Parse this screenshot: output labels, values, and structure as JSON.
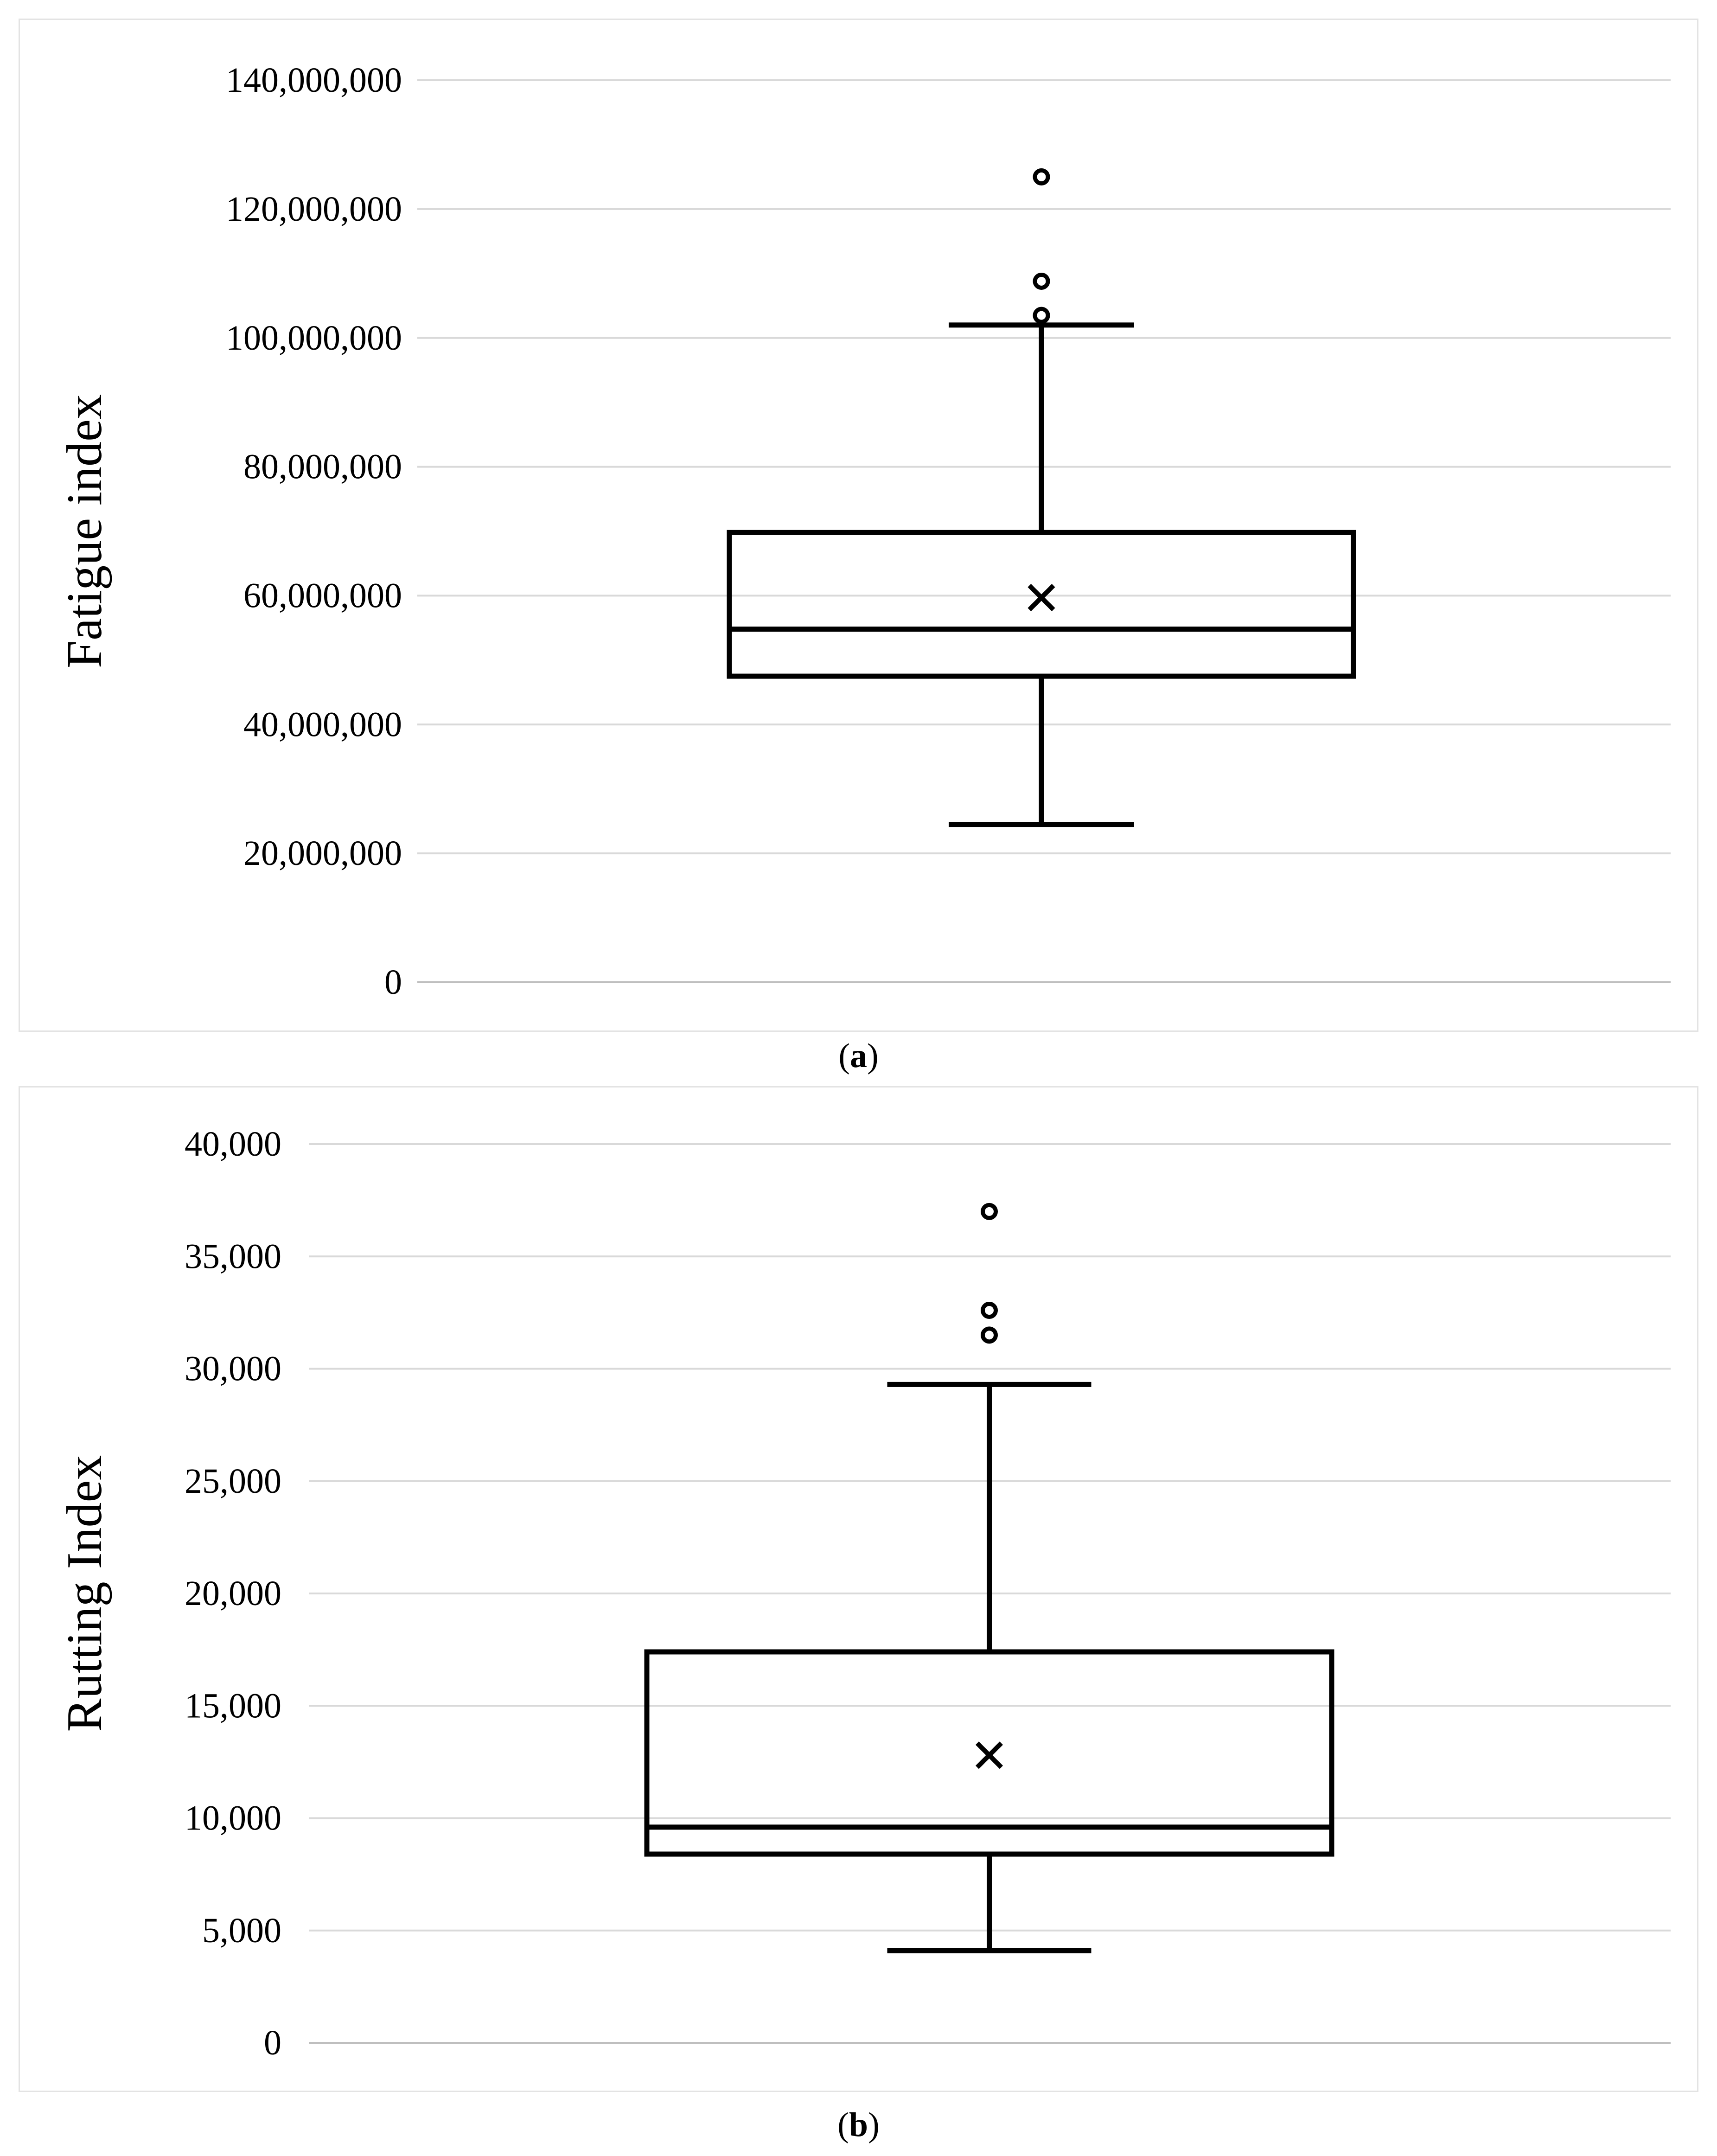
{
  "chart_data": [
    {
      "type": "box",
      "id": "a",
      "caption_letter": "a",
      "ylabel": "Fatigue index",
      "ylim": [
        0,
        140000000
      ],
      "yticks": [
        0,
        20000000,
        40000000,
        60000000,
        80000000,
        100000000,
        120000000,
        140000000
      ],
      "ytick_labels": [
        "0",
        "20,000,000",
        "40,000,000",
        "60,000,000",
        "80,000,000",
        "100,000,000",
        "120,000,000",
        "140,000,000"
      ],
      "grid": true,
      "box": {
        "whisker_low": 24500000,
        "q1": 47500000,
        "median": 54800000,
        "q3": 69800000,
        "whisker_high": 102000000,
        "mean": 59700000,
        "outliers": [
          103500000,
          108800000,
          125000000
        ]
      }
    },
    {
      "type": "box",
      "id": "b",
      "caption_letter": "b",
      "ylabel": "Rutting Index",
      "ylim": [
        0,
        40000
      ],
      "yticks": [
        0,
        5000,
        10000,
        15000,
        20000,
        25000,
        30000,
        35000,
        40000
      ],
      "ytick_labels": [
        "0",
        "5,000",
        "10,000",
        "15,000",
        "20,000",
        "25,000",
        "30,000",
        "35,000",
        "40,000"
      ],
      "grid": true,
      "box": {
        "whisker_low": 4100,
        "q1": 8400,
        "median": 9600,
        "q3": 17400,
        "whisker_high": 29300,
        "mean": 12800,
        "outliers": [
          31500,
          32600,
          37000
        ]
      }
    }
  ],
  "colors": {
    "grid": "#d9d9d9",
    "axis": "#bfbfbf",
    "box": "#000000",
    "panel_border": "#e3e3e3"
  }
}
